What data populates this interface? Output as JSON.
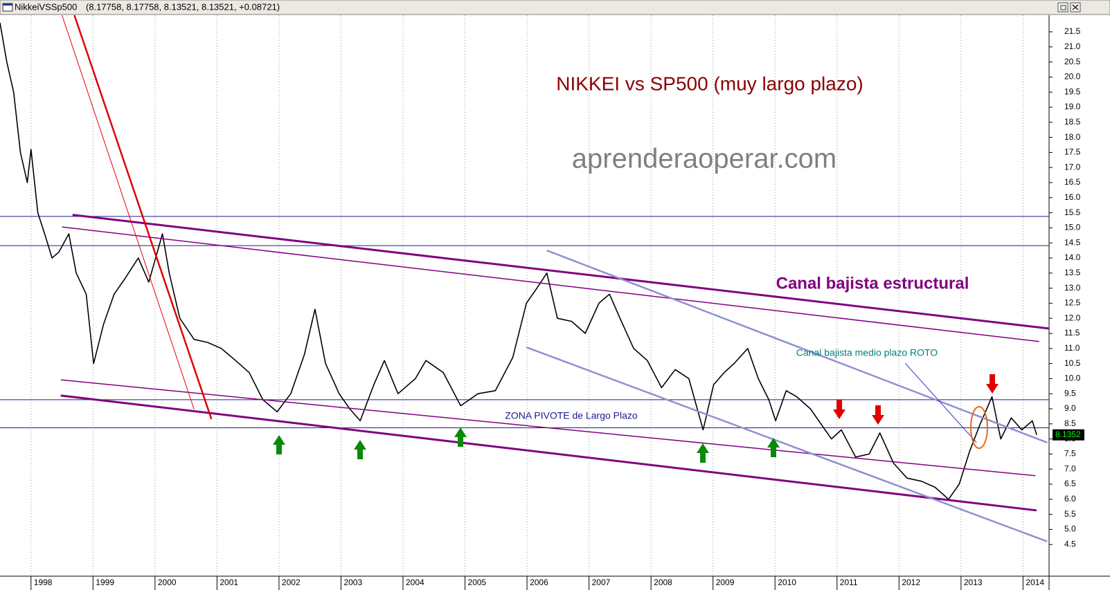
{
  "window": {
    "name": "NikkeiVSSp500",
    "ohlc": "(8.17758, 8.17758, 8.13521, 8.13521, +0.08721)"
  },
  "chart_data": {
    "type": "line",
    "title": "NIKKEI vs SP500 (muy largo plazo)",
    "subtitle": "aprenderaoperar.com",
    "annotations": [
      "Canal bajista estructural",
      "Canal bajista medio plazo ROTO",
      "ZONA PIVOTE de Largo Plazo"
    ],
    "color": "#000000",
    "x": [
      1997.5,
      1997.61,
      1997.72,
      1997.83,
      1997.94,
      1998.0,
      1998.11,
      1998.22,
      1998.34,
      1998.45,
      1998.61,
      1998.73,
      1998.89,
      1999.01,
      1999.17,
      1999.34,
      1999.51,
      1999.73,
      1999.9,
      2000.12,
      2000.23,
      2000.4,
      2000.63,
      2000.85,
      2001.07,
      2001.3,
      2001.52,
      2001.74,
      2001.97,
      2002.19,
      2002.41,
      2002.58,
      2002.75,
      2002.97,
      2003.14,
      2003.31,
      2003.53,
      2003.7,
      2003.92,
      2004.2,
      2004.37,
      2004.65,
      2004.93,
      2005.21,
      2005.49,
      2005.77,
      2005.99,
      2006.16,
      2006.32,
      2006.49,
      2006.72,
      2006.94,
      2007.16,
      2007.33,
      2007.5,
      2007.72,
      2007.94,
      2008.17,
      2008.39,
      2008.61,
      2008.84,
      2009.01,
      2009.18,
      2009.34,
      2009.56,
      2009.73,
      2009.9,
      2010.01,
      2010.18,
      2010.35,
      2010.57,
      2010.74,
      2010.91,
      2011.07,
      2011.3,
      2011.52,
      2011.69,
      2011.91,
      2012.13,
      2012.36,
      2012.58,
      2012.8,
      2012.97,
      2013.14,
      2013.31,
      2013.5,
      2013.64,
      2013.81,
      2013.98,
      2014.15,
      2014.22
    ],
    "values": [
      21.8,
      20.5,
      19.5,
      17.5,
      16.5,
      17.6,
      15.5,
      14.8,
      14.0,
      14.2,
      14.8,
      13.5,
      12.8,
      10.5,
      11.8,
      12.8,
      13.3,
      14.0,
      13.2,
      14.8,
      13.5,
      12.0,
      11.3,
      11.2,
      11.0,
      10.6,
      10.2,
      9.3,
      8.9,
      9.5,
      10.8,
      12.3,
      10.5,
      9.5,
      9.0,
      8.6,
      9.8,
      10.6,
      9.5,
      10.0,
      10.6,
      10.2,
      9.1,
      9.5,
      9.6,
      10.7,
      12.5,
      13.0,
      13.5,
      12.0,
      11.9,
      11.5,
      12.5,
      12.8,
      12.0,
      11.0,
      10.6,
      9.7,
      10.3,
      10.0,
      8.3,
      9.8,
      10.2,
      10.5,
      11.0,
      10.0,
      9.3,
      8.6,
      9.6,
      9.4,
      9.0,
      8.5,
      8.0,
      8.3,
      7.4,
      7.5,
      8.2,
      7.2,
      6.7,
      6.6,
      6.4,
      6.0,
      6.5,
      7.6,
      8.5,
      9.4,
      8.0,
      8.7,
      8.3,
      8.6,
      8.135
    ],
    "last_value": 8.13521,
    "last_label": "8.1352",
    "xlim": [
      1997.5,
      2014.42
    ],
    "ylim": [
      3.45,
      22.05
    ],
    "xticks": [
      1998,
      1999,
      2000,
      2001,
      2002,
      2003,
      2004,
      2005,
      2006,
      2007,
      2008,
      2009,
      2010,
      2011,
      2012,
      2013,
      2014
    ],
    "yticks": [
      4.5,
      {
        "value": 5,
        "label": "5.0"
      },
      5.5,
      {
        "value": 6,
        "label": "6.0"
      },
      6.5,
      {
        "value": 7,
        "label": "7.0"
      },
      7.5,
      {
        "value": 8,
        "label": "8.0"
      },
      8.5,
      {
        "value": 9,
        "label": "9.0"
      },
      9.5,
      {
        "value": 10,
        "label": "10.0"
      },
      10.5,
      {
        "value": 11,
        "label": "11.0"
      },
      11.5,
      {
        "value": 12,
        "label": "12.0"
      },
      12.5,
      {
        "value": 13,
        "label": "13.0"
      },
      13.5,
      {
        "value": 14,
        "label": "14.0"
      },
      14.5,
      {
        "value": 15,
        "label": "15.0"
      },
      15.5,
      {
        "value": 16,
        "label": "16.0"
      },
      16.5,
      {
        "value": 17,
        "label": "17.0"
      },
      17.5,
      {
        "value": 18,
        "label": "18.0"
      },
      18.5,
      {
        "value": 19,
        "label": "19.0"
      },
      19.5,
      {
        "value": 20,
        "label": "20.0"
      },
      20.5,
      {
        "value": 21,
        "label": "21.0"
      },
      21.5
    ],
    "grid": true,
    "hlines": [
      {
        "value": 15.38,
        "color": "#1a1a8c"
      },
      {
        "value": 14.41,
        "color": "#1a1a8c"
      },
      {
        "value": 9.3,
        "color": "#1a1a8c"
      },
      {
        "value": 8.37,
        "color": "#1a1a8c"
      }
    ],
    "trendlines": [
      {
        "color": "#800080",
        "width": 3,
        "x": [
          1998.67,
          2014.42
        ],
        "values": [
          15.43,
          11.66
        ]
      },
      {
        "color": "#800080",
        "width": 1.5,
        "x": [
          1998.5,
          2014.26
        ],
        "values": [
          15.03,
          11.23
        ]
      },
      {
        "color": "#800080",
        "width": 1.5,
        "x": [
          1998.48,
          2014.2
        ],
        "values": [
          9.96,
          6.78
        ]
      },
      {
        "color": "#800080",
        "width": 3,
        "x": [
          1998.48,
          2014.22
        ],
        "values": [
          9.44,
          5.63
        ]
      },
      {
        "color": "#e00000",
        "width": 2.5,
        "x": [
          1998.7,
          2000.91
        ],
        "values": [
          22.05,
          8.66
        ]
      },
      {
        "color": "#e00000",
        "width": 1,
        "x": [
          1998.5,
          2000.63
        ],
        "values": [
          22.05,
          8.98
        ]
      },
      {
        "color": "#8f8fcf",
        "width": 2.5,
        "x": [
          2006.32,
          2014.39
        ],
        "values": [
          14.25,
          7.88
        ]
      },
      {
        "color": "#8f8fcf",
        "width": 2.5,
        "x": [
          2005.99,
          2014.39
        ],
        "values": [
          11.04,
          4.6
        ]
      },
      {
        "color": "#3030c0",
        "width": 1,
        "x": [
          2012.1,
          2013.25
        ],
        "values": [
          10.51,
          7.88
        ]
      }
    ]
  }
}
